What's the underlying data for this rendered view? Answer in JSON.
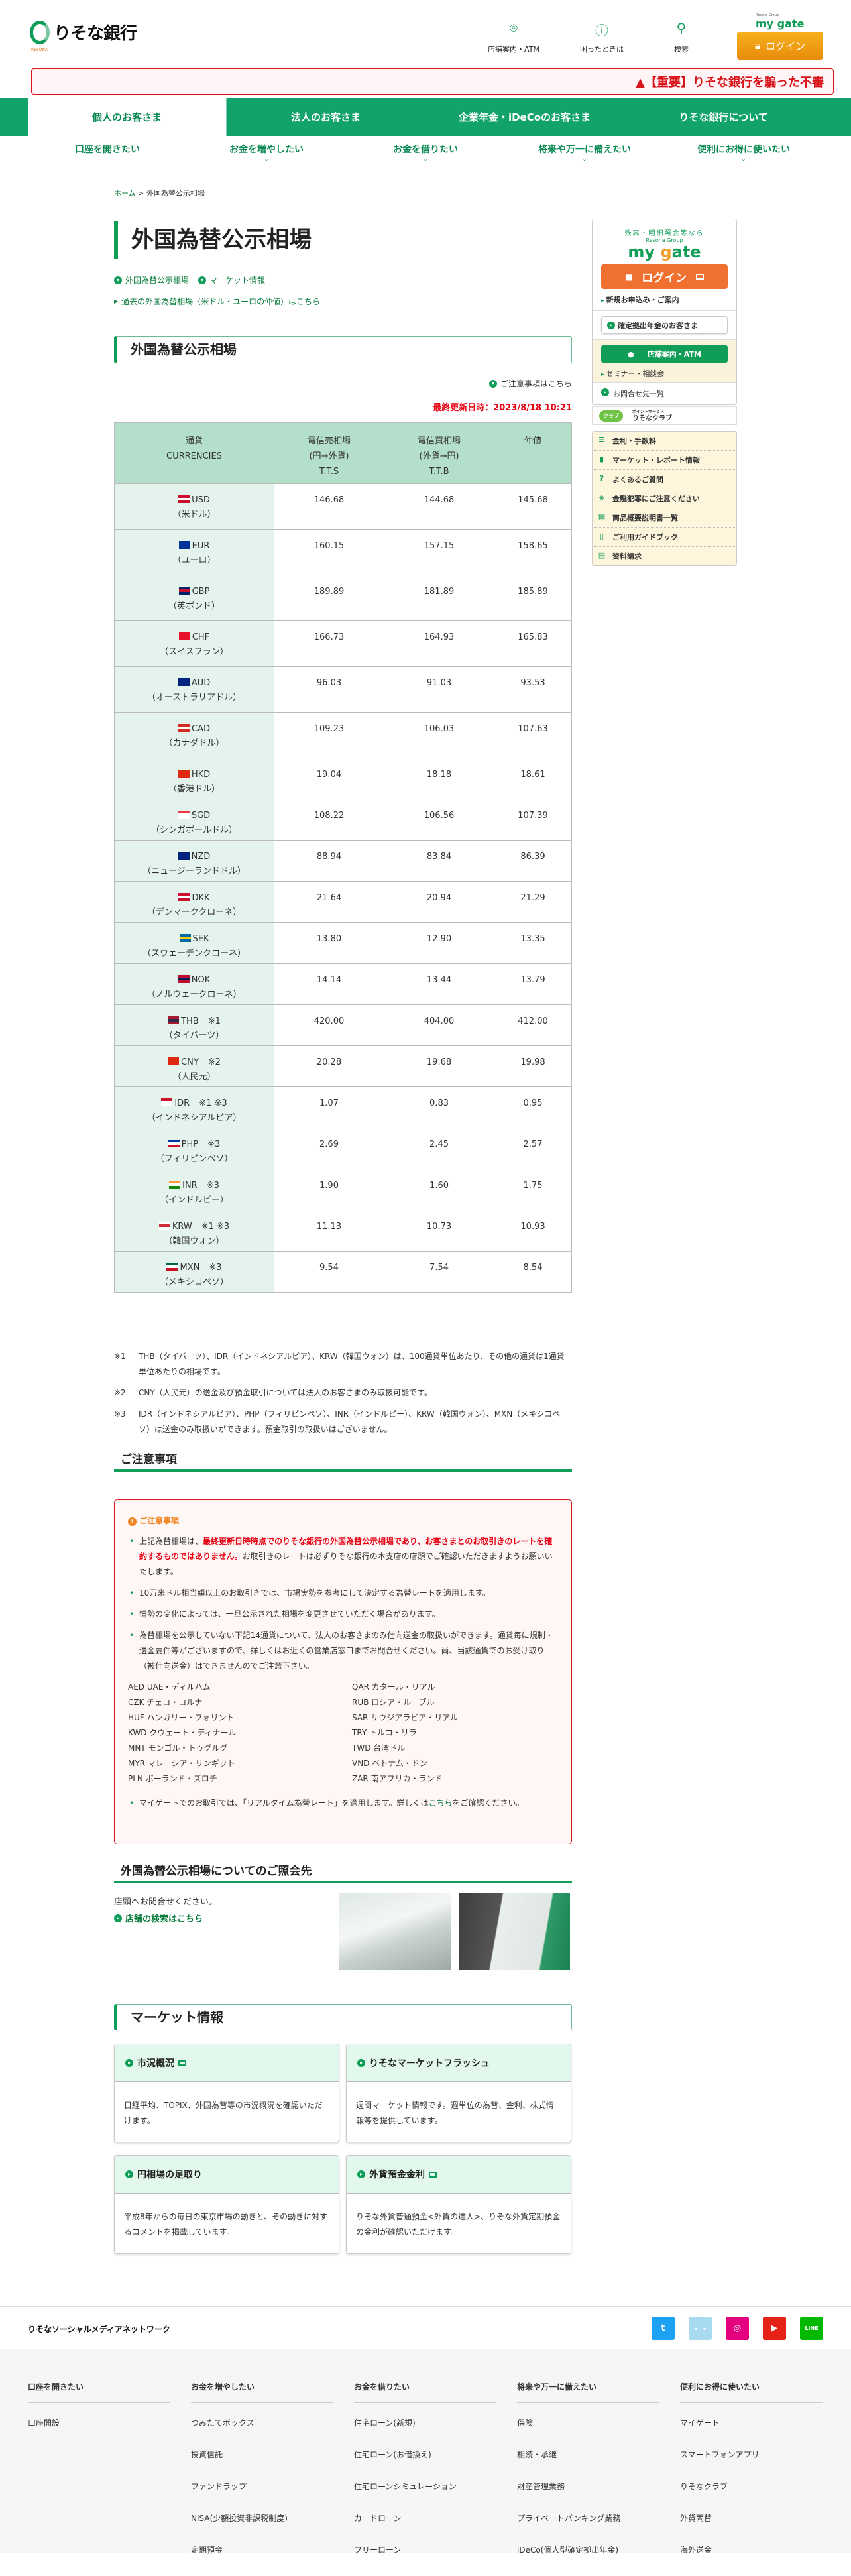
{
  "header": {
    "logo": "りそな銀行",
    "logo_sub": "RESONA",
    "nav": [
      {
        "label": "店舗案内・ATM",
        "icon": "map-pin-icon"
      },
      {
        "label": "困ったときは",
        "icon": "question-bubble-icon"
      },
      {
        "label": "検索",
        "icon": "search-icon"
      }
    ],
    "mygate_group": "Resona Group",
    "mygate": "my gate",
    "login": "ログイン"
  },
  "alert": "【重要】りそな銀行を騙った不審",
  "tabs": [
    "個人のお客さま",
    "法人のお客さま",
    "企業年金・iDeCoのお客さま",
    "りそな銀行について"
  ],
  "subnav": [
    "口座を開きたい",
    "お金を増やしたい",
    "お金を借りたい",
    "将来や万一に備えたい",
    "便利にお得に使いたい"
  ],
  "breadcrumb": {
    "home": "ホーム",
    "sep": ">",
    "current": "外国為替公示相場"
  },
  "page_title": "外国為替公示相場",
  "anchors": [
    "外国為替公示相場",
    "マーケット情報"
  ],
  "past_link": "過去の外国為替相場（米ドル・ユーロの仲値）はこちら",
  "section_title": "外国為替公示相場",
  "caution_link": "ご注意事項はこちら",
  "updated": "最終更新日時：2023/8/18 10:21",
  "table": {
    "headers": [
      [
        "通貨",
        "CURRENCIES"
      ],
      [
        "電信売相場",
        "(円→外貨)",
        "T.T.S"
      ],
      [
        "電信買相場",
        "(外貨→円)",
        "T.T.B"
      ],
      [
        "仲値"
      ]
    ],
    "rows": [
      {
        "code": "USD",
        "note": "",
        "name": "（米ドル）",
        "tts": "146.68",
        "ttb": "144.68",
        "ttm": "145.68",
        "flag": [
          "#c8102e",
          "#ffffff",
          "#c8102e"
        ]
      },
      {
        "code": "EUR",
        "note": "",
        "name": "（ユーロ）",
        "tts": "160.15",
        "ttb": "157.15",
        "ttm": "158.65",
        "flag": [
          "#003399",
          "#003399",
          "#003399"
        ]
      },
      {
        "code": "GBP",
        "note": "",
        "name": "（英ポンド）",
        "tts": "189.89",
        "ttb": "181.89",
        "ttm": "185.89",
        "flag": [
          "#012169",
          "#c8102e",
          "#012169"
        ]
      },
      {
        "code": "CHF",
        "note": "",
        "name": "（スイスフラン）",
        "tts": "166.73",
        "ttb": "164.93",
        "ttm": "165.83",
        "flag": [
          "#e8112d",
          "#e8112d",
          "#e8112d"
        ]
      },
      {
        "code": "AUD",
        "note": "",
        "name": "（オーストラリアドル）",
        "tts": "96.03",
        "ttb": "91.03",
        "ttm": "93.53",
        "flag": [
          "#00247d",
          "#00247d",
          "#00247d"
        ]
      },
      {
        "code": "CAD",
        "note": "",
        "name": "（カナダドル）",
        "tts": "109.23",
        "ttb": "106.03",
        "ttm": "107.63",
        "flag": [
          "#d52b1e",
          "#ffffff",
          "#d52b1e"
        ]
      },
      {
        "code": "HKD",
        "note": "",
        "name": "（香港ドル）",
        "tts": "19.04",
        "ttb": "18.18",
        "ttm": "18.61",
        "flag": [
          "#de2910",
          "#de2910",
          "#de2910"
        ]
      },
      {
        "code": "SGD",
        "note": "",
        "name": "（シンガポールドル）",
        "tts": "108.22",
        "ttb": "106.56",
        "ttm": "107.39",
        "flag": [
          "#ef3340",
          "#ffffff",
          "#ffffff"
        ]
      },
      {
        "code": "NZD",
        "note": "",
        "name": "（ニュージーランドドル）",
        "tts": "88.94",
        "ttb": "83.84",
        "ttm": "86.39",
        "flag": [
          "#00247d",
          "#00247d",
          "#00247d"
        ]
      },
      {
        "code": "DKK",
        "note": "",
        "name": "（デンマーククローネ）",
        "tts": "21.64",
        "ttb": "20.94",
        "ttm": "21.29",
        "flag": [
          "#c8102e",
          "#ffffff",
          "#c8102e"
        ]
      },
      {
        "code": "SEK",
        "note": "",
        "name": "（スウェーデンクローネ）",
        "tts": "13.80",
        "ttb": "12.90",
        "ttm": "13.35",
        "flag": [
          "#006aa7",
          "#fecc00",
          "#006aa7"
        ]
      },
      {
        "code": "NOK",
        "note": "",
        "name": "（ノルウェークローネ）",
        "tts": "14.14",
        "ttb": "13.44",
        "ttm": "13.79",
        "flag": [
          "#ba0c2f",
          "#00205b",
          "#ba0c2f"
        ]
      },
      {
        "code": "THB",
        "note": "※1",
        "name": "（タイバーツ）",
        "tts": "420.00",
        "ttb": "404.00",
        "ttm": "412.00",
        "flag": [
          "#a51931",
          "#2d2a4a",
          "#a51931"
        ]
      },
      {
        "code": "CNY",
        "note": "※2",
        "name": "（人民元）",
        "tts": "20.28",
        "ttb": "19.68",
        "ttm": "19.98",
        "flag": [
          "#de2910",
          "#de2910",
          "#de2910"
        ]
      },
      {
        "code": "IDR",
        "note": "※1 ※3",
        "name": "（インドネシアルピア）",
        "tts": "1.07",
        "ttb": "0.83",
        "ttm": "0.95",
        "flag": [
          "#ce1126",
          "#ffffff",
          "#ffffff"
        ]
      },
      {
        "code": "PHP",
        "note": "※3",
        "name": "（フィリピンペソ）",
        "tts": "2.69",
        "ttb": "2.45",
        "ttm": "2.57",
        "flag": [
          "#0038a8",
          "#ffffff",
          "#ce1126"
        ]
      },
      {
        "code": "INR",
        "note": "※3",
        "name": "（インドルピー）",
        "tts": "1.90",
        "ttb": "1.60",
        "ttm": "1.75",
        "flag": [
          "#ff9933",
          "#ffffff",
          "#138808"
        ]
      },
      {
        "code": "KRW",
        "note": "※1 ※3",
        "name": "（韓国ウォン）",
        "tts": "11.13",
        "ttb": "10.73",
        "ttm": "10.93",
        "flag": [
          "#ffffff",
          "#cd2e3a",
          "#ffffff"
        ]
      },
      {
        "code": "MXN",
        "note": "※3",
        "name": "（メキシコペソ）",
        "tts": "9.54",
        "ttb": "7.54",
        "ttm": "8.54",
        "flag": [
          "#006847",
          "#ffffff",
          "#ce1126"
        ]
      }
    ]
  },
  "notes": [
    {
      "mark": "※1",
      "text": "THB（タイバーツ）、IDR（インドネシアルピア）、KRW（韓国ウォン）は、100通貨単位あたり、その他の通貨は1通貨単位あたりの相場です。"
    },
    {
      "mark": "※2",
      "text": "CNY（人民元）の送金及び預金取引については法人のお客さまのみ取扱可能です。"
    },
    {
      "mark": "※3",
      "text": "IDR（インドネシアルピア）、PHP（フィリピンペソ）、INR（インドルピー）、KRW（韓国ウォン）、MXN（メキシコペソ）は送金のみ取扱いができます。預金取引の取扱いはございません。"
    }
  ],
  "caution": {
    "heading": "ご注意事項",
    "box_title": "ご注意事項",
    "b1_pre": "上記為替相場は、",
    "b1_red": "最終更新日時時点でのりそな銀行の外国為替公示相場であり、お客さまとのお取引きのレートを確約するものではありません。",
    "b1_post": "お取引きのレートは必ずりそな銀行の本支店の店頭でご確認いただきますようお願いいたします。",
    "b2": "10万米ドル相当額以上のお取引きでは、市場実勢を参考にして決定する為替レートを適用します。",
    "b3": "情勢の変化によっては、一旦公示された相場を変更させていただく場合があります。",
    "b4": "為替相場を公示していない下記14通貨について、法人のお客さまのみ仕向送金の取扱いができます。通貨毎に規制・送金要件等がございますので、詳しくはお近くの営業店窓口までお問合せください。尚、当該通貨でのお受け取り（被仕向送金）はできませんのでご注意下さい。",
    "currencies": [
      "AED UAE・ディルハム",
      "QAR カタール・リアル",
      "CZK チェコ・コルナ",
      "RUB ロシア・ルーブル",
      "HUF ハンガリー・フォリント",
      "SAR サウジアラビア・リアル",
      "KWD クウェート・ディナール",
      "TRY トルコ・リラ",
      "MNT モンゴル・トゥグルグ",
      "TWD 台湾ドル",
      "MYR マレーシア・リンギット",
      "VND ベトナム・ドン",
      "PLN ポーランド・ズロチ",
      "ZAR 南アフリカ・ランド"
    ],
    "b5_pre": "マイゲートでのお取引では、「リアルタイム為替レート」を適用します。詳しくは",
    "b5_link": "こちら",
    "b5_post": "をご確認ください。"
  },
  "inquiry": {
    "heading": "外国為替公示相場についてのご照会先",
    "text": "店頭へお問合せください。",
    "link": "店舗の検索はこちら"
  },
  "market": {
    "heading": "マーケット情報",
    "cards": [
      {
        "title": "市況概況",
        "ext": true,
        "body": "日経平均、TOPIX、外国為替等の市況概況を確認いただけます。"
      },
      {
        "title": "りそなマーケットフラッシュ",
        "ext": false,
        "body": "週間マーケット情報です。週単位の為替、金利、株式情報等を提供しています。"
      },
      {
        "title": "円相場の足取り",
        "ext": false,
        "body": "平成8年からの毎日の東京市場の動きと、その動きに対するコメントを掲載しています。"
      },
      {
        "title": "外貨預金金利",
        "ext": true,
        "body": "りそな外貨普通預金<外貨の達人>、りそな外貨定期預金の金利が確認いただけます。"
      }
    ]
  },
  "sidebar": {
    "lead": "残高・明細照会等なら",
    "group": "Resona Group",
    "mygate_a": "my ",
    "mygate_b": "g",
    "mygate_c": "ate",
    "login": "ログイン",
    "apply": "新規お申込み・ご案内",
    "dc": "確定拠出年金のお客さま",
    "atm": "店舗案内・ATM",
    "seminar": "セミナー・相談会",
    "contact": "お問合せ先一覧",
    "club_badge": "クラブ",
    "club_sub": "ポイントサービス",
    "club": "りそなクラブ",
    "links": [
      {
        "label": "金利・手数料",
        "icon": "coins-icon"
      },
      {
        "label": "マーケット・レポート情報",
        "icon": "bar-chart-icon"
      },
      {
        "label": "よくあるご質問",
        "icon": "question-circle-icon"
      },
      {
        "label": "金融犯罪にご注意ください",
        "icon": "shield-icon"
      },
      {
        "label": "商品概要説明書一覧",
        "icon": "document-icon"
      },
      {
        "label": "ご利用ガイドブック",
        "icon": "book-icon"
      },
      {
        "label": "資料請求",
        "icon": "document-icon"
      }
    ]
  },
  "footer": {
    "social_title": "りそなソーシャルメディアネットワーク",
    "social": [
      {
        "name": "twitter",
        "glyph": "t",
        "color": "#1da1f2"
      },
      {
        "name": "character",
        "glyph": "・・",
        "color": "#a8daf0"
      },
      {
        "name": "instagram",
        "glyph": "◎",
        "color": "#e4007f"
      },
      {
        "name": "youtube",
        "glyph": "▶",
        "color": "#e62117"
      },
      {
        "name": "line",
        "glyph": "LINE",
        "color": "#00b900"
      }
    ],
    "columns": [
      {
        "title": "口座を開きたい",
        "items": [
          "口座開設"
        ]
      },
      {
        "title": "お金を増やしたい",
        "items": [
          "つみたてボックス",
          "投資信託",
          "ファンドラップ",
          "NISA(少額投資非課税制度)",
          "定期預金"
        ]
      },
      {
        "title": "お金を借りたい",
        "items": [
          "住宅ローン(新規)",
          "住宅ローン(お借換え)",
          "住宅ローンシミュレーション",
          "カードローン",
          "フリーローン"
        ]
      },
      {
        "title": "将来や万一に備えたい",
        "items": [
          "保険",
          "相続・承継",
          "財産管理業務",
          "プライベートバンキング業務",
          "iDeCo(個人型確定拠出年金)"
        ]
      },
      {
        "title": "便利にお得に使いたい",
        "items": [
          "マイゲート",
          "スマートフォンアプリ",
          "りそなクラブ",
          "外貨両替",
          "海外送金"
        ]
      }
    ]
  },
  "colors": {
    "brand_green": "#12a36b",
    "alert_red": "#d9141a",
    "login_orange": "#f07030"
  }
}
